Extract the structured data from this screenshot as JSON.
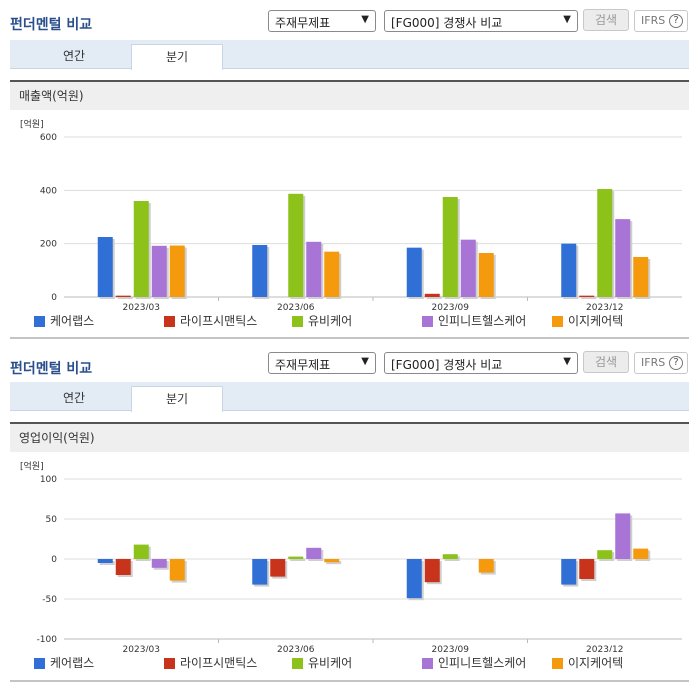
{
  "panels": [
    {
      "title": "펀더멘털 비교",
      "select1": "주재무제표",
      "select2": "[FG000] 경쟁사 비교",
      "search_label": "검색",
      "ifrs_label": "IFRS",
      "ifrs_help": "?",
      "tabs": [
        "연간",
        "분기"
      ],
      "active_tab": 1,
      "section_title": "매출액(억원)",
      "unit": "[억원]"
    },
    {
      "title": "펀더멘털 비교",
      "select1": "주재무제표",
      "select2": "[FG000] 경쟁사 비교",
      "search_label": "검색",
      "ifrs_label": "IFRS",
      "ifrs_help": "?",
      "tabs": [
        "연간",
        "분기"
      ],
      "active_tab": 1,
      "section_title": "영업이익(억원)",
      "unit": "[억원]"
    }
  ],
  "chart_data": [
    {
      "type": "bar",
      "title": "매출액(억원)",
      "ylabel": "[억원]",
      "categories": [
        "2023/03",
        "2023/06",
        "2023/09",
        "2023/12"
      ],
      "ylim": [
        0,
        600
      ],
      "yticks": [
        0,
        200,
        400,
        600
      ],
      "grid": true,
      "legend": "bottom",
      "series": [
        {
          "name": "케어랩스",
          "color": "#2f6fd6",
          "values": [
            225,
            195,
            185,
            200
          ]
        },
        {
          "name": "라이프시맨틱스",
          "color": "#c8331b",
          "values": [
            5,
            0,
            12,
            5
          ]
        },
        {
          "name": "유비케어",
          "color": "#8cc21a",
          "values": [
            360,
            387,
            375,
            405
          ]
        },
        {
          "name": "인피니트헬스케어",
          "color": "#a874d6",
          "values": [
            192,
            207,
            215,
            292
          ]
        },
        {
          "name": "이지케어텍",
          "color": "#f59a0c",
          "values": [
            193,
            170,
            165,
            150
          ]
        }
      ]
    },
    {
      "type": "bar",
      "title": "영업이익(억원)",
      "ylabel": "[억원]",
      "categories": [
        "2023/03",
        "2023/06",
        "2023/09",
        "2023/12"
      ],
      "ylim": [
        -100,
        100
      ],
      "yticks": [
        -100,
        -50,
        0,
        50,
        100
      ],
      "grid": true,
      "legend": "bottom",
      "series": [
        {
          "name": "케어랩스",
          "color": "#2f6fd6",
          "values": [
            -5,
            -32,
            -49,
            -32
          ]
        },
        {
          "name": "라이프시맨틱스",
          "color": "#c8331b",
          "values": [
            -20,
            -22,
            -29,
            -25
          ]
        },
        {
          "name": "유비케어",
          "color": "#8cc21a",
          "values": [
            18,
            3,
            6,
            11
          ]
        },
        {
          "name": "인피니트헬스케어",
          "color": "#a874d6",
          "values": [
            -11,
            14,
            0,
            57
          ]
        },
        {
          "name": "이지케어텍",
          "color": "#f59a0c",
          "values": [
            -27,
            -4,
            -17,
            13
          ]
        }
      ]
    }
  ]
}
